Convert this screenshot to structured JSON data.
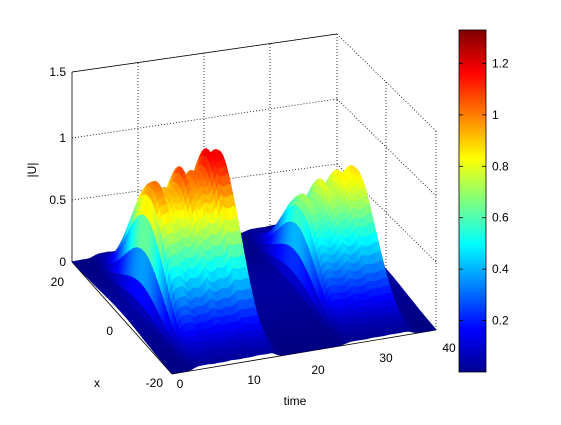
{
  "chart_data": {
    "type": "surface3d",
    "title": "",
    "xlabel": "time",
    "ylabel": "x",
    "zlabel": "|U|",
    "colormap": "jet",
    "grid": true,
    "ticks": {
      "time": [
        "0",
        "10",
        "20",
        "30",
        "40"
      ],
      "x": [
        "-20",
        "0",
        "20"
      ],
      "z": [
        "0",
        "0.5",
        "1",
        "1.5"
      ]
    },
    "xlim": [
      0,
      40
    ],
    "ylim": [
      -20,
      20
    ],
    "zlim": [
      0,
      1.5
    ],
    "colorbar": {
      "range": [
        0,
        1.33
      ],
      "ticks": [
        "0.2",
        "0.4",
        "0.6",
        "0.8",
        "1",
        "1.2"
      ],
      "tick_values": [
        0.2,
        0.4,
        0.6,
        0.8,
        1.0,
        1.2
      ]
    },
    "pulses": [
      {
        "time_start": 3.3,
        "time_end": 15.7,
        "peak_amplitude": 1.33,
        "peak_time": 15.3,
        "ripple_maxima": [
          {
            "time": 5.5,
            "value": 1.0
          },
          {
            "time": 7.0,
            "value": 0.95
          },
          {
            "time": 9.0,
            "value": 1.1
          },
          {
            "time": 11.0,
            "value": 1.05
          },
          {
            "time": 13.0,
            "value": 1.2
          },
          {
            "time": 15.3,
            "value": 1.33
          }
        ]
      },
      {
        "time_start": 26.3,
        "time_end": 36.3,
        "peak_amplitude": 1.0,
        "peak_time": 36.0,
        "ripple_maxima": [
          {
            "time": 28.0,
            "value": 0.7
          },
          {
            "time": 30.5,
            "value": 0.8
          },
          {
            "time": 33.0,
            "value": 0.85
          },
          {
            "time": 36.0,
            "value": 1.0
          }
        ]
      }
    ]
  }
}
